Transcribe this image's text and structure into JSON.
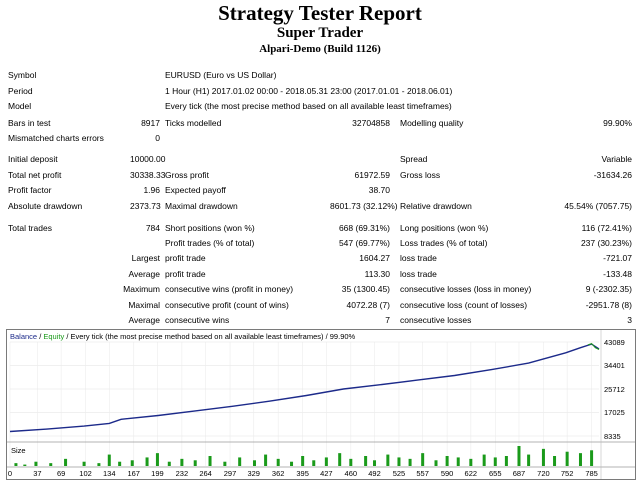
{
  "header": {
    "title": "Strategy Tester Report",
    "ea_name": "Super Trader",
    "server": "Alpari-Demo (Build 1126)"
  },
  "rows": [
    {
      "cells": [
        {
          "text": "Symbol"
        },
        {
          "text": "EURUSD (Euro vs US Dollar)"
        }
      ]
    },
    {
      "cells": [
        {
          "text": "Period"
        },
        {
          "text": "1 Hour (H1) 2017.01.02 00:00 - 2018.05.31 23:00 (2017.01.01 - 2018.06.01)"
        }
      ]
    },
    {
      "cells": [
        {
          "text": "Model"
        },
        {
          "text": "Every tick (the most precise method based on all available least timeframes)"
        }
      ]
    },
    {
      "cells": [
        {
          "text": "Bars in test"
        },
        {
          "text": "8917",
          "right": true
        },
        {
          "text": "Ticks modelled"
        },
        {
          "text": "32704858",
          "right": true
        },
        {
          "text": "Modelling quality"
        },
        {
          "text": "99.90%",
          "right": true
        }
      ]
    },
    {
      "cells": [
        {
          "text": "Mismatched charts errors"
        },
        {
          "text": "0",
          "right": true
        }
      ]
    },
    {
      "cells": [
        {
          "text": "Initial deposit"
        },
        {
          "text": "10000.00",
          "right": true
        },
        {
          "text": ""
        },
        {
          "text": "",
          "right": true
        },
        {
          "text": "Spread"
        },
        {
          "text": "Variable",
          "right": true
        }
      ]
    },
    {
      "cells": [
        {
          "text": "Total net profit"
        },
        {
          "text": "30338.33",
          "right": true
        },
        {
          "text": "Gross profit"
        },
        {
          "text": "61972.59",
          "right": true
        },
        {
          "text": "Gross loss"
        },
        {
          "text": "-31634.26",
          "right": true
        }
      ]
    },
    {
      "cells": [
        {
          "text": "Profit factor"
        },
        {
          "text": "1.96",
          "right": true
        },
        {
          "text": "Expected payoff"
        },
        {
          "text": "38.70",
          "right": true
        }
      ]
    },
    {
      "cells": [
        {
          "text": "Absolute drawdown"
        },
        {
          "text": "2373.73",
          "right": true
        },
        {
          "text": "Maximal drawdown"
        },
        {
          "text": "8601.73 (32.12%)",
          "right": true
        },
        {
          "text": "Relative drawdown"
        },
        {
          "text": "45.54% (7057.75)",
          "right": true
        }
      ]
    },
    {
      "cells": [
        {
          "text": "Total trades"
        },
        {
          "text": "784",
          "right": true
        },
        {
          "text": "Short positions (won %)"
        },
        {
          "text": "668 (69.31%)",
          "right": true
        },
        {
          "text": "Long positions (won %)"
        },
        {
          "text": "116 (72.41%)",
          "right": true
        }
      ]
    },
    {
      "cells": [
        {
          "text": ""
        },
        {
          "text": "",
          "right": true
        },
        {
          "text": "Profit trades (% of total)"
        },
        {
          "text": "547 (69.77%)",
          "right": true
        },
        {
          "text": "Loss trades (% of total)"
        },
        {
          "text": "237 (30.23%)",
          "right": true
        }
      ]
    },
    {
      "cells": [
        {
          "text": "Largest",
          "right": true
        },
        {
          "text": "profit trade"
        },
        {
          "text": "1604.27",
          "right": true
        },
        {
          "text": "loss trade"
        },
        {
          "text": "-721.07",
          "right": true
        }
      ]
    },
    {
      "cells": [
        {
          "text": "Average",
          "right": true
        },
        {
          "text": "profit trade"
        },
        {
          "text": "113.30",
          "right": true
        },
        {
          "text": "loss trade"
        },
        {
          "text": "-133.48",
          "right": true
        }
      ]
    },
    {
      "cells": [
        {
          "text": "Maximum",
          "right": true
        },
        {
          "text": "consecutive wins (profit in money)"
        },
        {
          "text": "35 (1300.45)",
          "right": true
        },
        {
          "text": "consecutive losses (loss in money)"
        },
        {
          "text": "9 (-2302.35)",
          "right": true
        }
      ]
    },
    {
      "cells": [
        {
          "text": "Maximal",
          "right": true
        },
        {
          "text": "consecutive profit (count of wins)"
        },
        {
          "text": "4072.28 (7)",
          "right": true
        },
        {
          "text": "consecutive loss (count of losses)"
        },
        {
          "text": "-2951.78 (8)",
          "right": true
        }
      ]
    },
    {
      "cells": [
        {
          "text": "Average",
          "right": true
        },
        {
          "text": "consecutive wins"
        },
        {
          "text": "7",
          "right": true
        },
        {
          "text": "consecutive losses"
        },
        {
          "text": "3",
          "right": true
        }
      ]
    }
  ],
  "chart": {
    "legend_balance": "Balance",
    "legend_sep": " / ",
    "legend_equity": "Equity",
    "legend_rest": " / Every tick (the most precise method based on all available least timeframes) / 99.90%",
    "balance_color": "#1c2a8a",
    "equity_color": "#1a9a1a",
    "size_label": "Size"
  },
  "chart_data": {
    "type": "line",
    "ylim": [
      8335,
      43089
    ],
    "y_ticks": [
      8335,
      17025,
      25712,
      34401,
      43089
    ],
    "x_ticks": [
      0,
      37,
      69,
      102,
      134,
      167,
      199,
      232,
      264,
      297,
      329,
      362,
      395,
      427,
      460,
      492,
      525,
      557,
      590,
      622,
      655,
      687,
      720,
      752,
      785
    ],
    "xlim": [
      0,
      795
    ],
    "series": [
      {
        "name": "Balance",
        "x": [
          0,
          50,
          100,
          134,
          150,
          200,
          250,
          300,
          350,
          400,
          450,
          500,
          550,
          600,
          650,
          700,
          750,
          770,
          785,
          795
        ],
        "y": [
          10000,
          10900,
          12000,
          13000,
          14500,
          15900,
          17600,
          19300,
          21200,
          23300,
          25700,
          27300,
          29000,
          30700,
          32900,
          35300,
          39100,
          41000,
          42300,
          40500
        ]
      },
      {
        "name": "Equity",
        "x": [
          780,
          785,
          790,
          795
        ],
        "y": [
          42000,
          42500,
          41000,
          40300
        ]
      }
    ],
    "size_bars": {
      "x": [
        8,
        20,
        35,
        55,
        75,
        100,
        120,
        134,
        148,
        165,
        185,
        199,
        215,
        232,
        250,
        270,
        290,
        310,
        330,
        345,
        362,
        380,
        395,
        410,
        427,
        445,
        460,
        480,
        492,
        510,
        525,
        540,
        557,
        575,
        590,
        605,
        622,
        640,
        655,
        670,
        687,
        700,
        720,
        735,
        752,
        770,
        785
      ],
      "values": [
        2,
        1,
        3,
        2,
        5,
        3,
        2,
        8,
        3,
        4,
        6,
        9,
        3,
        5,
        4,
        7,
        3,
        6,
        4,
        8,
        5,
        3,
        7,
        4,
        6,
        9,
        5,
        7,
        4,
        8,
        6,
        5,
        9,
        4,
        7,
        6,
        5,
        8,
        6,
        7,
        14,
        8,
        12,
        7,
        10,
        9,
        11
      ]
    }
  }
}
